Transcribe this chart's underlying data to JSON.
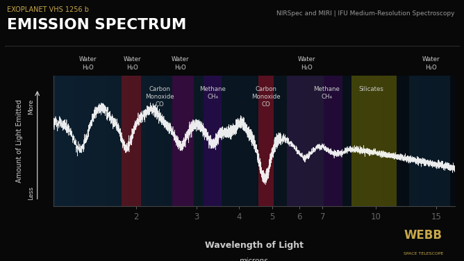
{
  "title_top": "EXOPLANET VHS 1256 b",
  "title_main": "EMISSION SPECTRUM",
  "subtitle_right": "NIRSpec and MIRI | IFU Medium-Resolution Spectroscopy",
  "background_color": "#080808",
  "plot_bg_gradient_left": "#0d1e30",
  "plot_bg_gradient_right": "#040810",
  "xlabel": "Wavelength of Light",
  "xlabel_sub": "microns",
  "ylabel": "Amount of Light Emitted",
  "ytick_more": "More",
  "ytick_less": "Less",
  "x_ticks": [
    2,
    3,
    4,
    5,
    6,
    7,
    10,
    15
  ],
  "text_color": "#cccccc",
  "spectrum_color": "#ffffff",
  "webb_logo_color": "#c8a84b",
  "title_top_color": "#c8a84b",
  "bands": [
    {
      "xmin": 1.82,
      "xmax": 2.07,
      "color": "#5a1520",
      "opacity": 0.85
    },
    {
      "xmin": 2.55,
      "xmax": 2.95,
      "color": "#3a0a40",
      "opacity": 0.85
    },
    {
      "xmin": 3.15,
      "xmax": 3.55,
      "color": "#2a0a50",
      "opacity": 0.75
    },
    {
      "xmin": 4.55,
      "xmax": 5.05,
      "color": "#601020",
      "opacity": 0.9
    },
    {
      "xmin": 5.5,
      "xmax": 7.05,
      "color": "#2a1a40",
      "opacity": 0.7
    },
    {
      "xmin": 7.05,
      "xmax": 8.0,
      "color": "#2a0a40",
      "opacity": 0.75
    },
    {
      "xmin": 8.5,
      "xmax": 11.5,
      "color": "#4a4a08",
      "opacity": 0.85
    },
    {
      "xmin": 12.5,
      "xmax": 16.5,
      "color": "#0d2030",
      "opacity": 0.7
    }
  ],
  "top_labels": [
    {
      "x": 1.45,
      "lines": [
        "Water",
        "H₂O"
      ]
    },
    {
      "x": 1.95,
      "lines": [
        "Water",
        "H₂O"
      ]
    },
    {
      "x": 2.7,
      "lines": [
        "Water",
        "H₂O"
      ]
    },
    {
      "x": 6.3,
      "lines": [
        "Water",
        "H₂O"
      ]
    },
    {
      "x": 14.5,
      "lines": [
        "Water",
        "H₂O"
      ]
    }
  ],
  "mid_labels": [
    {
      "x": 2.35,
      "lines": [
        "Carbon",
        "Monoxide",
        "CO"
      ]
    },
    {
      "x": 3.35,
      "lines": [
        "Methane",
        "CH₄"
      ]
    },
    {
      "x": 4.8,
      "lines": [
        "Carbon",
        "Monoxide",
        "CO"
      ]
    },
    {
      "x": 7.2,
      "lines": [
        "Methane",
        "CH₄"
      ]
    },
    {
      "x": 9.7,
      "lines": [
        "Silicates"
      ]
    }
  ]
}
